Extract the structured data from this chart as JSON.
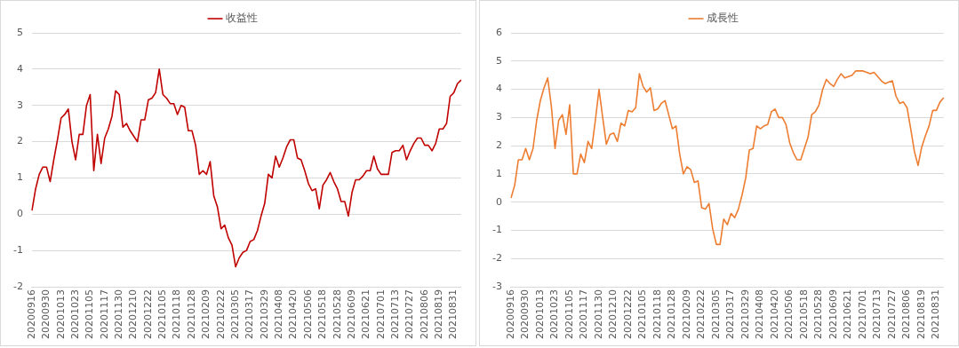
{
  "chart_data": [
    {
      "type": "line",
      "legend": "top",
      "grid": "y",
      "marker": "none",
      "ylim": [
        -2,
        5
      ],
      "yticks": [
        -2,
        -1,
        0,
        1,
        2,
        3,
        4,
        5
      ],
      "categories": [
        "20200916",
        null,
        null,
        null,
        "20200930",
        null,
        null,
        null,
        "20201013",
        null,
        null,
        null,
        "20201023",
        null,
        null,
        null,
        "20201105",
        null,
        null,
        null,
        "20201117",
        null,
        null,
        null,
        "20201130",
        null,
        null,
        null,
        "20201210",
        null,
        null,
        null,
        "20201222",
        null,
        null,
        null,
        "20210105",
        null,
        null,
        null,
        "20210118",
        null,
        null,
        null,
        "20210128",
        null,
        null,
        null,
        "20210209",
        null,
        null,
        null,
        "20210222",
        null,
        null,
        null,
        "20210305",
        null,
        null,
        null,
        "20210317",
        null,
        null,
        null,
        "20210329",
        null,
        null,
        null,
        "20210408",
        null,
        null,
        null,
        "20210420",
        null,
        null,
        null,
        "20210506",
        null,
        null,
        null,
        "20210518",
        null,
        null,
        null,
        "20210528",
        null,
        null,
        null,
        "20210609",
        null,
        null,
        null,
        "20210621",
        null,
        null,
        null,
        "20210701",
        null,
        null,
        null,
        "20210713",
        null,
        null,
        null,
        "20210727",
        null,
        null,
        null,
        "20210806",
        null,
        null,
        null,
        "20210819",
        null,
        null,
        null,
        "20210831",
        null,
        null
      ],
      "series": [
        {
          "name": "收益性",
          "color": "#c00000",
          "values": [
            0.1,
            0.7,
            1.1,
            1.3,
            1.3,
            0.9,
            1.5,
            2.05,
            2.65,
            2.75,
            2.9,
            2.0,
            1.5,
            2.2,
            2.2,
            3.0,
            3.3,
            1.2,
            2.2,
            1.4,
            2.1,
            2.35,
            2.7,
            3.4,
            3.3,
            2.4,
            2.5,
            2.3,
            2.15,
            2.0,
            2.6,
            2.6,
            3.15,
            3.2,
            3.35,
            4.0,
            3.3,
            3.2,
            3.05,
            3.05,
            2.75,
            3.0,
            2.95,
            2.3,
            2.3,
            1.9,
            1.1,
            1.2,
            1.1,
            1.45,
            0.5,
            0.2,
            -0.4,
            -0.3,
            -0.65,
            -0.85,
            -1.45,
            -1.2,
            -1.05,
            -1.0,
            -0.75,
            -0.7,
            -0.45,
            -0.05,
            0.3,
            1.1,
            1.0,
            1.6,
            1.3,
            1.55,
            1.85,
            2.05,
            2.05,
            1.55,
            1.5,
            1.2,
            0.85,
            0.65,
            0.7,
            0.15,
            0.8,
            0.95,
            1.15,
            0.9,
            0.7,
            0.35,
            0.35,
            -0.05,
            0.6,
            0.95,
            0.95,
            1.05,
            1.2,
            1.2,
            1.6,
            1.25,
            1.1,
            1.1,
            1.1,
            1.7,
            1.75,
            1.75,
            1.9,
            1.5,
            1.75,
            1.95,
            2.1,
            2.1,
            1.9,
            1.9,
            1.75,
            1.95,
            2.35,
            2.35,
            2.5,
            3.25,
            3.35,
            3.6,
            3.7
          ]
        }
      ]
    },
    {
      "type": "line",
      "legend": "top",
      "grid": "y",
      "marker": "none",
      "ylim": [
        -3,
        6
      ],
      "yticks": [
        -3,
        -2,
        -1,
        0,
        1,
        2,
        3,
        4,
        5,
        6
      ],
      "categories": [
        "20200916",
        null,
        null,
        null,
        "20200930",
        null,
        null,
        null,
        "20201013",
        null,
        null,
        null,
        "20201023",
        null,
        null,
        null,
        "20201105",
        null,
        null,
        null,
        "20201117",
        null,
        null,
        null,
        "20201130",
        null,
        null,
        null,
        "20201210",
        null,
        null,
        null,
        "20201222",
        null,
        null,
        null,
        "20210105",
        null,
        null,
        null,
        "20210118",
        null,
        null,
        null,
        "20210128",
        null,
        null,
        null,
        "20210209",
        null,
        null,
        null,
        "20210222",
        null,
        null,
        null,
        "20210305",
        null,
        null,
        null,
        "20210317",
        null,
        null,
        null,
        "20210329",
        null,
        null,
        null,
        "20210408",
        null,
        null,
        null,
        "20210420",
        null,
        null,
        null,
        "20210506",
        null,
        null,
        null,
        "20210518",
        null,
        null,
        null,
        "20210528",
        null,
        null,
        null,
        "20210609",
        null,
        null,
        null,
        "20210621",
        null,
        null,
        null,
        "20210701",
        null,
        null,
        null,
        "20210713",
        null,
        null,
        null,
        "20210727",
        null,
        null,
        null,
        "20210806",
        null,
        null,
        null,
        "20210819",
        null,
        null,
        null,
        "20210831",
        null,
        null
      ],
      "series": [
        {
          "name": "成長性",
          "color": "#ed7d31",
          "values": [
            0.15,
            0.6,
            1.5,
            1.5,
            1.9,
            1.5,
            1.9,
            2.9,
            3.6,
            4.05,
            4.4,
            3.4,
            1.9,
            2.9,
            3.1,
            2.4,
            3.45,
            1.0,
            1.0,
            1.7,
            1.4,
            2.15,
            1.9,
            2.9,
            4.0,
            3.0,
            2.05,
            2.4,
            2.45,
            2.15,
            2.8,
            2.7,
            3.25,
            3.2,
            3.35,
            4.55,
            4.1,
            3.9,
            4.05,
            3.25,
            3.3,
            3.5,
            3.6,
            3.1,
            2.6,
            2.7,
            1.7,
            1.0,
            1.25,
            1.15,
            0.7,
            0.75,
            -0.2,
            -0.25,
            -0.05,
            -0.95,
            -1.5,
            -1.5,
            -0.6,
            -0.8,
            -0.4,
            -0.55,
            -0.25,
            0.25,
            0.85,
            1.85,
            1.9,
            2.7,
            2.6,
            2.7,
            2.75,
            3.2,
            3.3,
            3.0,
            3.0,
            2.75,
            2.1,
            1.75,
            1.5,
            1.5,
            1.9,
            2.3,
            3.1,
            3.2,
            3.45,
            4.0,
            4.35,
            4.2,
            4.1,
            4.35,
            4.55,
            4.4,
            4.45,
            4.5,
            4.65,
            4.65,
            4.65,
            4.6,
            4.55,
            4.6,
            4.45,
            4.3,
            4.2,
            4.25,
            4.3,
            3.75,
            3.5,
            3.55,
            3.35,
            2.6,
            1.8,
            1.3,
            1.95,
            2.35,
            2.7,
            3.25,
            3.25,
            3.55,
            3.7
          ]
        }
      ]
    }
  ]
}
